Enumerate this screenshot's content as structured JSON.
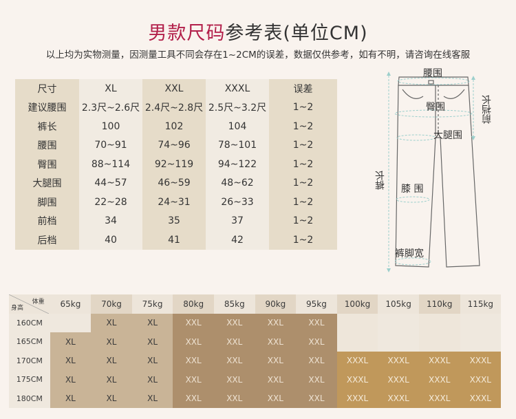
{
  "title": {
    "part1": "男款尺码",
    "part2": "参考表(单位CM)"
  },
  "subtitle": "以上均为实物测量，因测量工具不同会存在1~2CM的误差，数据仅供参考，如有不明，请咨询在线客服",
  "size_table": {
    "header": [
      "尺寸",
      "XL",
      "XXL",
      "XXXL",
      "误差"
    ],
    "rows": [
      [
        "建议腰围",
        "2.3尺~2.6尺",
        "2.4尺~2.8尺",
        "2.5尺~3.2尺",
        "1~2"
      ],
      [
        "裤长",
        "100",
        "102",
        "104",
        "1~2"
      ],
      [
        "腰围",
        "70~91",
        "74~96",
        "78~101",
        "1~2"
      ],
      [
        "臀围",
        "88~114",
        "92~119",
        "94~122",
        "1~2"
      ],
      [
        "大腿围",
        "44~57",
        "46~59",
        "48~62",
        "1~2"
      ],
      [
        "脚围",
        "22~28",
        "24~31",
        "26~33",
        "1~2"
      ],
      [
        "前档",
        "34",
        "35",
        "37",
        "1~2"
      ],
      [
        "后档",
        "40",
        "41",
        "42",
        "1~2"
      ]
    ]
  },
  "diagram": {
    "waist": "腰围",
    "hip": "臀围",
    "front_rise": "前裆长",
    "thigh": "大腿围",
    "length": "裤长",
    "knee": "膝 围",
    "hem": "裤脚宽"
  },
  "fit_table": {
    "corner_weight": "体重",
    "corner_height": "身高",
    "weights": [
      "65kg",
      "70kg",
      "75kg",
      "80kg",
      "85kg",
      "90kg",
      "95kg",
      "100kg",
      "105kg",
      "110kg",
      "115kg"
    ],
    "rows": [
      {
        "height": "160CM",
        "cells": [
          "",
          "XL",
          "XL",
          "XXL",
          "XXL",
          "XXL",
          "XXL",
          "",
          "",
          "",
          ""
        ]
      },
      {
        "height": "165CM",
        "cells": [
          "XL",
          "XL",
          "XL",
          "XXL",
          "XXL",
          "XXL",
          "XXL",
          "",
          "",
          "",
          ""
        ]
      },
      {
        "height": "170CM",
        "cells": [
          "XL",
          "XL",
          "XL",
          "XXL",
          "XXL",
          "XXL",
          "XXL",
          "XXXL",
          "XXXL",
          "XXXL",
          "XXXL"
        ]
      },
      {
        "height": "175CM",
        "cells": [
          "XL",
          "XL",
          "XL",
          "XXL",
          "XXL",
          "XXL",
          "XXL",
          "XXXL",
          "XXXL",
          "XXXL",
          "XXXL"
        ]
      },
      {
        "height": "180CM",
        "cells": [
          "XL",
          "XL",
          "XL",
          "XXL",
          "XXL",
          "XXL",
          "XXL",
          "XXXL",
          "XXXL",
          "XXXL",
          "XXXL"
        ]
      }
    ]
  },
  "colors": {
    "title_accent": "#b21f4a",
    "xl": "#c9b497",
    "xxl": "#ad8f6c",
    "xxxl": "#c0985b"
  }
}
